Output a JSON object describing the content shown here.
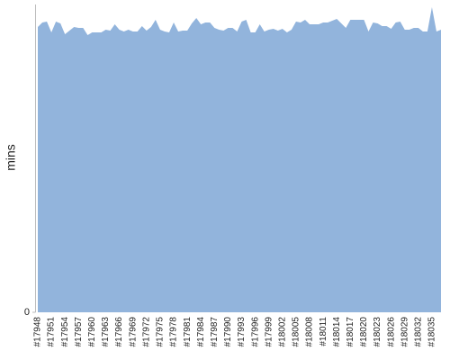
{
  "chart_data": {
    "type": "area",
    "ylabel": "mins",
    "color": "#92b4dc",
    "categories": [
      "#17948",
      null,
      null,
      "#17951",
      null,
      null,
      "#17954",
      null,
      null,
      "#17957",
      null,
      null,
      "#17960",
      null,
      null,
      "#17963",
      null,
      null,
      "#17966",
      null,
      null,
      "#17969",
      null,
      null,
      "#17972",
      null,
      null,
      "#17975",
      null,
      null,
      "#17978",
      null,
      null,
      "#17981",
      null,
      null,
      "#17984",
      null,
      null,
      "#17987",
      null,
      null,
      "#17990",
      null,
      null,
      "#17993",
      null,
      null,
      "#17996",
      null,
      null,
      "#17999",
      null,
      null,
      "#18002",
      null,
      null,
      "#18005",
      null,
      null,
      "#18008",
      null,
      null,
      "#18011",
      null,
      null,
      "#18014",
      null,
      null,
      "#18017",
      null,
      null,
      "#18020",
      null,
      null,
      "#18023",
      null,
      null,
      "#18026",
      null,
      null,
      "#18029",
      null,
      null,
      "#18032",
      null,
      null,
      "#18035",
      null,
      null
    ],
    "values": [
      317,
      322,
      323,
      311,
      323,
      321,
      309,
      313,
      317,
      316,
      316,
      308,
      311,
      311,
      311,
      314,
      313,
      320,
      314,
      312,
      314,
      312,
      312,
      318,
      313,
      317,
      325,
      314,
      312,
      311,
      322,
      312,
      313,
      313,
      321,
      327,
      320,
      322,
      322,
      316,
      314,
      313,
      316,
      316,
      312,
      323,
      325,
      311,
      311,
      320,
      312,
      314,
      315,
      313,
      315,
      311,
      314,
      323,
      322,
      325,
      320,
      320,
      320,
      322,
      322,
      324,
      326,
      321,
      316,
      325,
      325,
      325,
      325,
      312,
      322,
      321,
      318,
      318,
      315,
      322,
      323,
      314,
      314,
      316,
      316,
      312,
      312,
      339,
      312,
      314
    ],
    "ylim": [
      0,
      342
    ],
    "yticks": [
      0
    ]
  }
}
